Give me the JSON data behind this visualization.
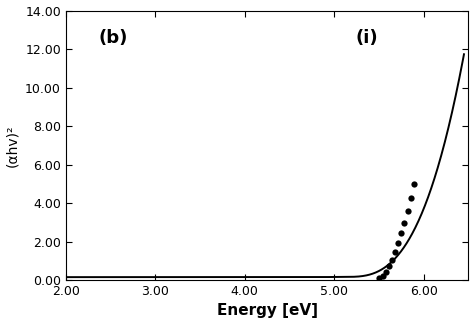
{
  "xlabel": "Energy [eV]",
  "ylabel": "(αhv)²",
  "label_b": "(b)",
  "label_i": "(i)",
  "xlim": [
    2.0,
    6.5
  ],
  "ylim": [
    0.0,
    14.0
  ],
  "xticks": [
    2.0,
    3.0,
    4.0,
    5.0,
    6.0
  ],
  "xtick_labels": [
    "2.00",
    "3.00",
    "4.00",
    "5.00",
    "6.00"
  ],
  "yticks": [
    0.0,
    2.0,
    4.0,
    6.0,
    8.0,
    10.0,
    12.0,
    14.0
  ],
  "ytick_labels": [
    "0.00",
    "2.00",
    "4.00",
    "6.00",
    "8.00",
    "10.00",
    "12.00",
    "14.00"
  ],
  "solid_color": "#000000",
  "dot_color": "#000000",
  "background_color": "#ffffff",
  "solid_lw": 1.4,
  "dot_size": 4.5,
  "dot_x": [
    5.5,
    5.54,
    5.575,
    5.61,
    5.645,
    5.68,
    5.715,
    5.75,
    5.785,
    5.82,
    5.855,
    5.89
  ],
  "dot_y": [
    0.08,
    0.22,
    0.42,
    0.72,
    1.05,
    1.45,
    1.9,
    2.42,
    2.98,
    3.6,
    4.25,
    5.0
  ]
}
